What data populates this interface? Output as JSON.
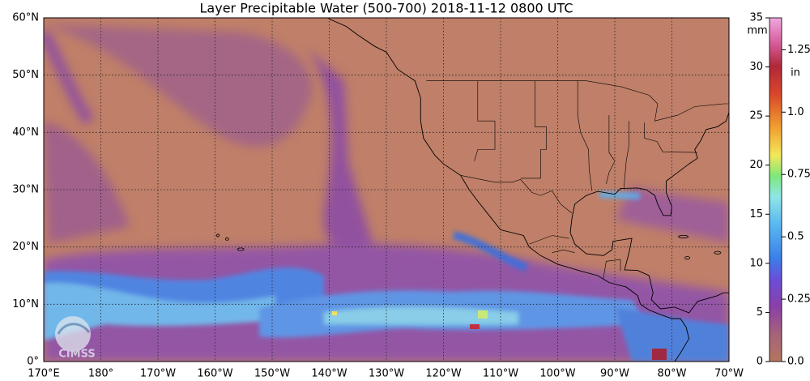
{
  "title": "Layer Precipitable Water (500-700)  2018-11-12 0800 UTC",
  "map": {
    "lat_ticks": [
      {
        "value": 60,
        "label": "60°N"
      },
      {
        "value": 50,
        "label": "50°N"
      },
      {
        "value": 40,
        "label": "40°N"
      },
      {
        "value": 30,
        "label": "30°N"
      },
      {
        "value": 20,
        "label": "20°N"
      },
      {
        "value": 10,
        "label": "10°N"
      },
      {
        "value": 0,
        "label": "0°"
      }
    ],
    "lon_ticks": [
      {
        "value": 170,
        "label": "170°E"
      },
      {
        "value": 180,
        "label": "180°"
      },
      {
        "value": -170,
        "label": "170°W"
      },
      {
        "value": -160,
        "label": "160°W"
      },
      {
        "value": -150,
        "label": "150°W"
      },
      {
        "value": -140,
        "label": "140°W"
      },
      {
        "value": -130,
        "label": "130°W"
      },
      {
        "value": -120,
        "label": "120°W"
      },
      {
        "value": -110,
        "label": "110°W"
      },
      {
        "value": -100,
        "label": "100°W"
      },
      {
        "value": -90,
        "label": "90°W"
      },
      {
        "value": -80,
        "label": "80°W"
      },
      {
        "value": -70,
        "label": "70°W"
      }
    ],
    "latlim": [
      0,
      60
    ],
    "lonlim": [
      170,
      -70
    ],
    "logo": "CIMSS"
  },
  "colorbar": {
    "mm_label": "mm",
    "in_label": "in",
    "mm_lim": [
      0,
      35
    ],
    "mm_ticks": [
      0,
      5,
      10,
      15,
      20,
      25,
      30,
      35
    ],
    "in_ticks": [
      {
        "value": 0,
        "label": "0.0"
      },
      0.25,
      0.5,
      0.75,
      {
        "value": 1,
        "label": "1.0"
      },
      1.25
    ]
  }
}
